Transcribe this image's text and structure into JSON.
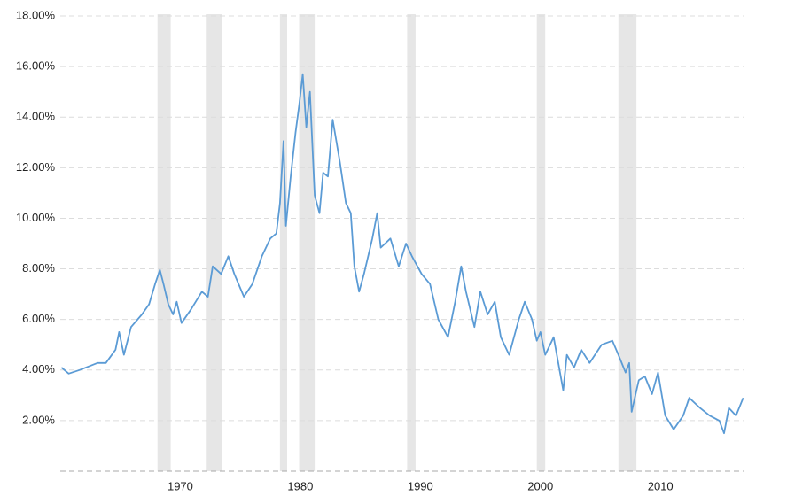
{
  "chart_data": {
    "type": "line",
    "x": [
      1960.1,
      1960.7,
      1961.6,
      1963.1,
      1963.8,
      1964.6,
      1964.9,
      1965.3,
      1965.9,
      1966.8,
      1967.4,
      1967.9,
      1968.3,
      1968.6,
      1969.0,
      1969.4,
      1969.7,
      1970.1,
      1970.9,
      1971.8,
      1972.3,
      1972.7,
      1973.4,
      1974.0,
      1974.5,
      1975.3,
      1976.0,
      1976.8,
      1977.5,
      1978.0,
      1978.3,
      1978.6,
      1978.8,
      1979.2,
      1979.6,
      1979.9,
      1980.2,
      1980.5,
      1980.8,
      1981.2,
      1981.6,
      1981.9,
      1982.3,
      1982.7,
      1983.3,
      1983.8,
      1984.2,
      1984.5,
      1984.9,
      1985.3,
      1986.0,
      1986.4,
      1986.7,
      1987.5,
      1988.2,
      1988.8,
      1989.3,
      1990.1,
      1990.8,
      1991.5,
      1992.3,
      1992.9,
      1993.4,
      1993.8,
      1994.5,
      1995.0,
      1995.6,
      1996.2,
      1996.7,
      1997.4,
      1998.2,
      1998.7,
      1999.3,
      1999.7,
      2000.0,
      2000.4,
      2001.1,
      2001.9,
      2002.2,
      2002.8,
      2003.4,
      2004.1,
      2005.1,
      2006.0,
      2006.5,
      2007.1,
      2007.4,
      2007.6,
      2008.2,
      2008.7,
      2009.3,
      2009.8,
      2010.4,
      2011.1,
      2011.9,
      2012.4,
      2013.3,
      2014.1,
      2014.9,
      2015.3,
      2015.7,
      2016.3,
      2016.9
    ],
    "series": [
      {
        "color": "#5b9bd5",
        "values": [
          4.1,
          3.86,
          4.0,
          4.28,
          4.28,
          4.8,
          5.5,
          4.6,
          5.7,
          6.2,
          6.6,
          7.4,
          7.96,
          7.4,
          6.6,
          6.2,
          6.7,
          5.86,
          6.4,
          7.1,
          6.9,
          8.1,
          7.8,
          8.5,
          7.8,
          6.9,
          7.4,
          8.5,
          9.2,
          9.4,
          10.6,
          13.05,
          9.7,
          11.65,
          13.4,
          14.46,
          15.7,
          13.6,
          15.0,
          10.9,
          10.2,
          11.8,
          11.65,
          13.9,
          12.2,
          10.6,
          10.2,
          8.1,
          7.1,
          7.8,
          9.2,
          10.2,
          8.84,
          9.2,
          8.1,
          9.0,
          8.5,
          7.8,
          7.4,
          6.0,
          5.3,
          6.7,
          8.1,
          7.1,
          5.7,
          7.1,
          6.2,
          6.7,
          5.3,
          4.6,
          6.0,
          6.7,
          6.0,
          5.16,
          5.5,
          4.6,
          5.3,
          3.2,
          4.6,
          4.1,
          4.8,
          4.28,
          5.0,
          5.16,
          4.6,
          3.9,
          4.28,
          2.35,
          3.6,
          3.75,
          3.05,
          3.9,
          2.2,
          1.65,
          2.2,
          2.9,
          2.5,
          2.2,
          2.0,
          1.5,
          2.5,
          2.2,
          2.9
        ]
      }
    ],
    "shaded_periods": [
      [
        1968.1,
        1969.2
      ],
      [
        1972.2,
        1973.5
      ],
      [
        1978.3,
        1978.9
      ],
      [
        1979.9,
        1981.2
      ],
      [
        1988.9,
        1989.6
      ],
      [
        1999.7,
        2000.4
      ],
      [
        2006.5,
        2008.0
      ]
    ],
    "shade_color": "#e6e6e6",
    "xlim": [
      1960,
      2017
    ],
    "xticks": [
      1970,
      1980,
      1990,
      2000,
      2010
    ],
    "ylim": [
      0,
      18
    ],
    "yticks": [
      {
        "value": 2,
        "label": "2.00%"
      },
      {
        "value": 4,
        "label": "4.00%"
      },
      {
        "value": 6,
        "label": "6.00%"
      },
      {
        "value": 8,
        "label": "8.00%"
      },
      {
        "value": 10,
        "label": "10.00%"
      },
      {
        "value": 12,
        "label": "12.00%"
      },
      {
        "value": 14,
        "label": "14.00%"
      },
      {
        "value": 16,
        "label": "16.00%"
      },
      {
        "value": 18,
        "label": "18.00%"
      }
    ],
    "grid": true
  }
}
